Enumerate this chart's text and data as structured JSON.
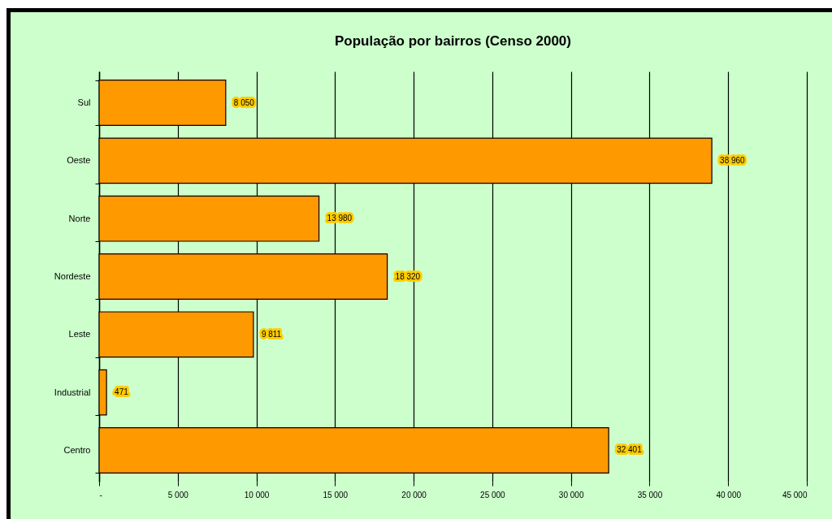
{
  "chart_data": {
    "type": "bar",
    "orientation": "horizontal",
    "title": "População por bairros (Censo 2000)",
    "categories": [
      "Sul",
      "Oeste",
      "Norte",
      "Nordeste",
      "Leste",
      "Industrial",
      "Centro"
    ],
    "values": [
      8050,
      38960,
      13980,
      18320,
      9811,
      471,
      32401
    ],
    "value_labels": [
      "8 050",
      "38 960",
      "13 980",
      "18 320",
      "9 811",
      "471",
      "32 401"
    ],
    "color": "#ff9900",
    "xlim": [
      0,
      45000
    ],
    "xticks": [
      {
        "value": 0,
        "label": "-"
      },
      {
        "value": 5000,
        "label": "5 000"
      },
      {
        "value": 10000,
        "label": "10 000"
      },
      {
        "value": 15000,
        "label": "15 000"
      },
      {
        "value": 20000,
        "label": "20 000"
      },
      {
        "value": 25000,
        "label": "25 000"
      },
      {
        "value": 30000,
        "label": "30 000"
      },
      {
        "value": 35000,
        "label": "35 000"
      },
      {
        "value": 40000,
        "label": "40 000"
      },
      {
        "value": 45000,
        "label": "45 000"
      }
    ],
    "grid": "x"
  }
}
